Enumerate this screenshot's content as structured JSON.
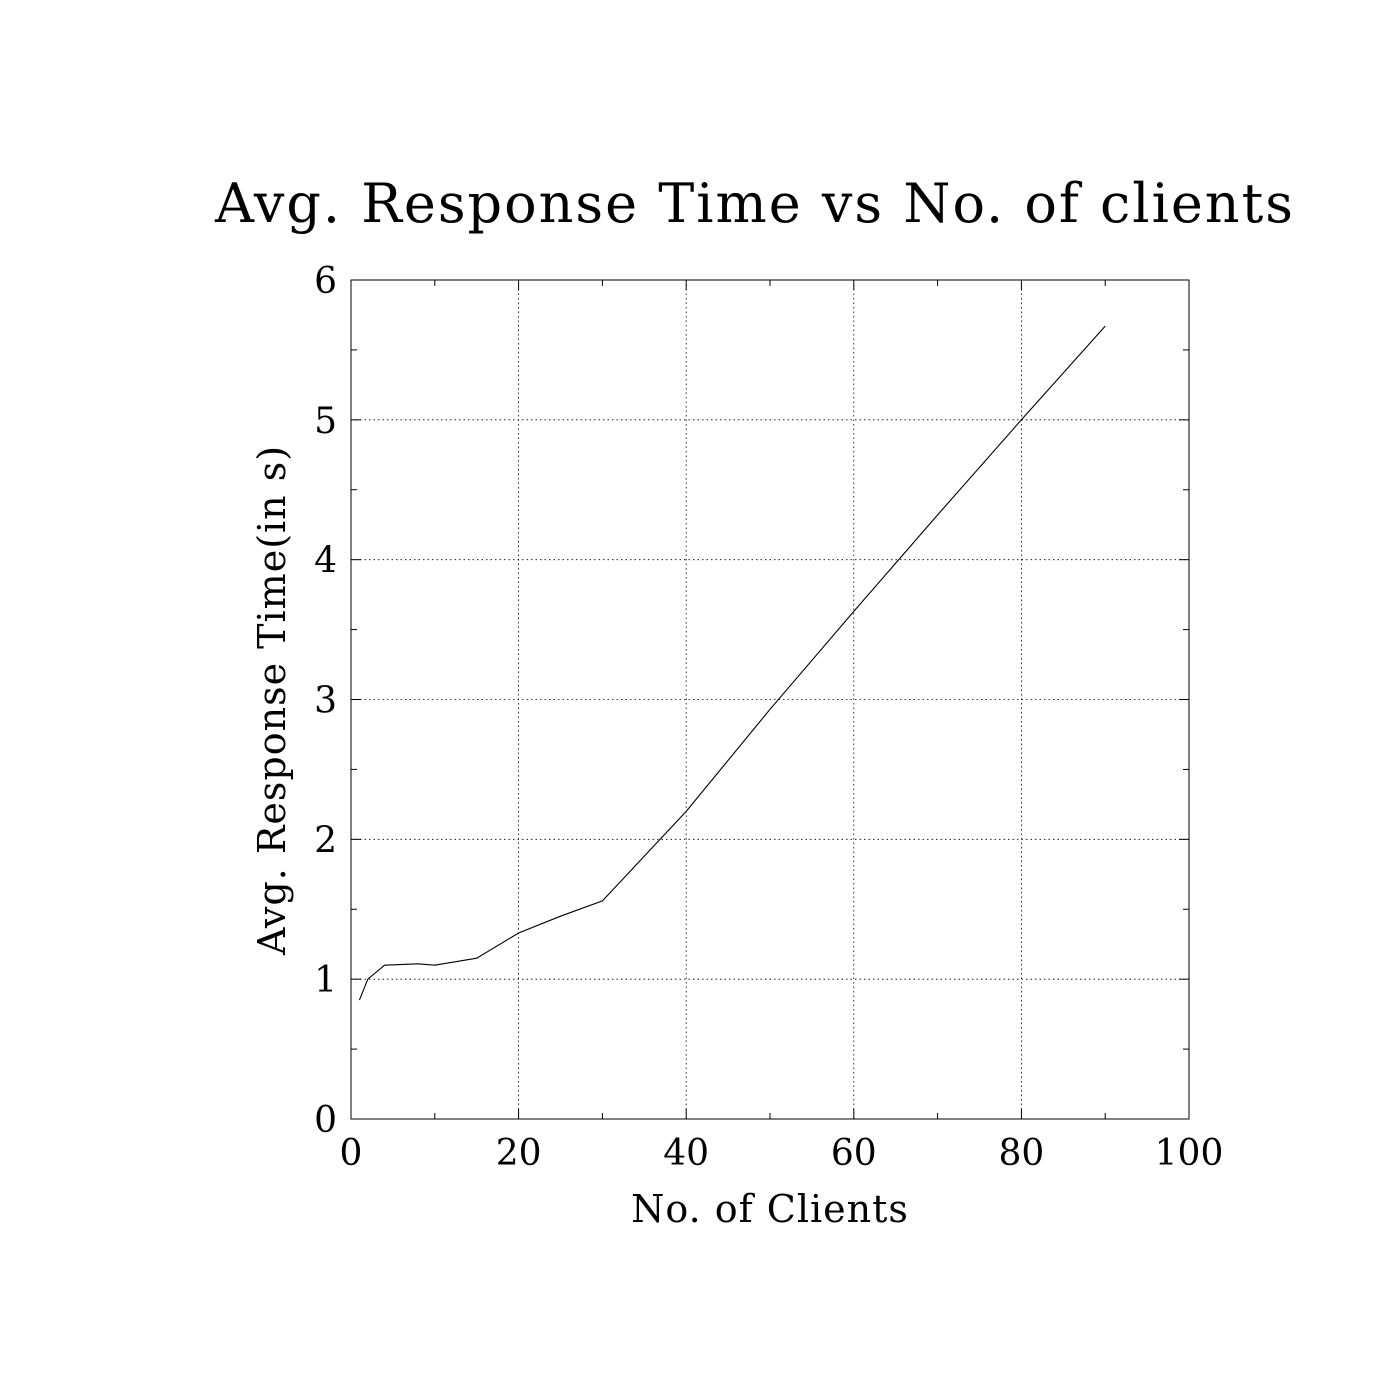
{
  "chart_data": {
    "type": "line",
    "title": "Avg. Response Time vs No. of clients",
    "xlabel": "No. of Clients",
    "ylabel": "Avg. Response Time(in s)",
    "xlim": [
      0,
      100
    ],
    "ylim": [
      0,
      6
    ],
    "xticks": [
      "0",
      "20",
      "40",
      "60",
      "80",
      "100"
    ],
    "yticks": [
      "0",
      "1",
      "2",
      "3",
      "4",
      "5",
      "6"
    ],
    "grid": true,
    "series": [
      {
        "x": [
          1,
          2,
          4,
          8,
          10,
          15,
          20,
          25,
          30,
          40,
          50,
          60,
          70,
          80,
          90
        ],
        "y": [
          0.85,
          1.0,
          1.1,
          1.11,
          1.1,
          1.15,
          1.33,
          1.45,
          1.56,
          2.2,
          2.93,
          3.63,
          4.32,
          5.0,
          5.67
        ]
      }
    ]
  }
}
